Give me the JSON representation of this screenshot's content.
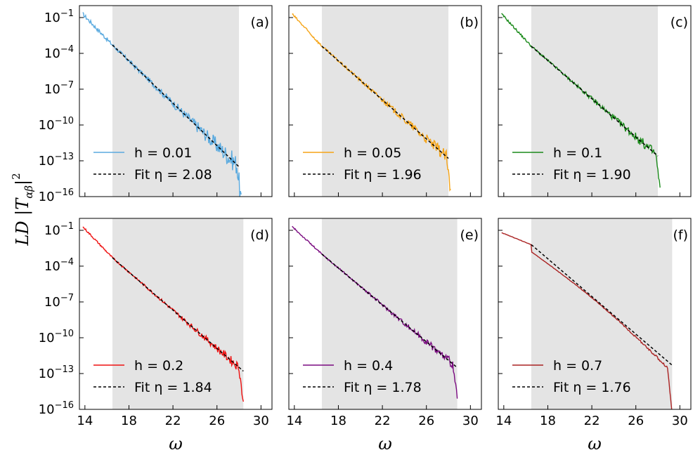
{
  "figure": {
    "ylabel": "LD |T",
    "ylabel_sub": "αβ",
    "ylabel_sup": "2",
    "xlabel": "ω"
  },
  "chart_data": [
    {
      "type": "line",
      "label": "(a)",
      "h_label": "h = 0.01",
      "fit_label": "Fit η = 2.08",
      "color": "#5aaadf",
      "eta": 2.08,
      "x_start": 13.8,
      "x_end": 28.2,
      "shade": [
        16.5,
        28.0
      ],
      "fit_x": [
        16.5,
        28.0
      ],
      "fit_y_log": [
        -3.3,
        -13.5
      ],
      "noise": 0.55,
      "xlim": [
        13.5,
        31
      ],
      "ylim_log": [
        -16,
        0
      ],
      "xticks": [
        14,
        18,
        22,
        26,
        30
      ],
      "yticks_log": [
        -1,
        -4,
        -7,
        -10,
        -13,
        -16
      ]
    },
    {
      "type": "line",
      "label": "(b)",
      "h_label": "h = 0.05",
      "fit_label": "Fit η = 1.96",
      "color": "#f5a417",
      "eta": 1.96,
      "x_start": 13.8,
      "x_end": 28.2,
      "shade": [
        16.5,
        28.0
      ],
      "fit_x": [
        16.5,
        28.0
      ],
      "fit_y_log": [
        -3.4,
        -12.8
      ],
      "noise": 0.35,
      "xlim": [
        13.5,
        31
      ],
      "ylim_log": [
        -16,
        0
      ],
      "xticks": [
        14,
        18,
        22,
        26,
        30
      ],
      "yticks_log": [
        -1,
        -4,
        -7,
        -10,
        -13,
        -16
      ]
    },
    {
      "type": "line",
      "label": "(c)",
      "h_label": "h = 0.1",
      "fit_label": "Fit η = 1.90",
      "color": "#1a8a1a",
      "eta": 1.9,
      "x_start": 13.8,
      "x_end": 28.2,
      "shade": [
        16.5,
        28.0
      ],
      "fit_x": [
        16.5,
        28.0
      ],
      "fit_y_log": [
        -3.4,
        -12.6
      ],
      "noise": 0.3,
      "xlim": [
        13.5,
        31
      ],
      "ylim_log": [
        -16,
        0
      ],
      "xticks": [
        14,
        18,
        22,
        26,
        30
      ],
      "yticks_log": [
        -1,
        -4,
        -7,
        -10,
        -13,
        -16
      ]
    },
    {
      "type": "line",
      "label": "(d)",
      "h_label": "h = 0.2",
      "fit_label": "Fit η = 1.84",
      "color": "#ee1111",
      "eta": 1.84,
      "x_start": 13.8,
      "x_end": 28.4,
      "shade": [
        16.5,
        28.4
      ],
      "fit_x": [
        16.5,
        28.4
      ],
      "fit_y_log": [
        -3.3,
        -12.8
      ],
      "noise": 0.25,
      "xlim": [
        13.5,
        31
      ],
      "ylim_log": [
        -16,
        0
      ],
      "xticks": [
        14,
        18,
        22,
        26,
        30
      ],
      "yticks_log": [
        -1,
        -4,
        -7,
        -10,
        -13,
        -16
      ]
    },
    {
      "type": "line",
      "label": "(e)",
      "h_label": "h = 0.4",
      "fit_label": "Fit η = 1.78",
      "color": "#7a0a80",
      "eta": 1.78,
      "x_start": 13.8,
      "x_end": 28.8,
      "shade": [
        16.5,
        28.8
      ],
      "fit_x": [
        16.5,
        28.8
      ],
      "fit_y_log": [
        -3.0,
        -12.5
      ],
      "noise": 0.22,
      "xlim": [
        13.5,
        31
      ],
      "ylim_log": [
        -16,
        0
      ],
      "xticks": [
        14,
        18,
        22,
        26,
        30
      ],
      "yticks_log": [
        -1,
        -4,
        -7,
        -10,
        -13,
        -16
      ]
    },
    {
      "type": "line",
      "label": "(f)",
      "h_label": "h = 0.7",
      "fit_label": "Fit η = 1.76",
      "color": "#aa2222",
      "eta": 1.76,
      "x_start": 13.8,
      "x_end": 29.3,
      "shade": [
        16.5,
        29.3
      ],
      "fit_x": [
        16.5,
        29.3
      ],
      "fit_y_log": [
        -2.2,
        -12.3
      ],
      "noise": 0.06,
      "xlim": [
        13.5,
        31
      ],
      "ylim_log": [
        -16,
        0
      ],
      "xticks": [
        14,
        18,
        22,
        26,
        30
      ],
      "yticks_log": [
        -1,
        -4,
        -7,
        -10,
        -13,
        -16
      ]
    }
  ]
}
